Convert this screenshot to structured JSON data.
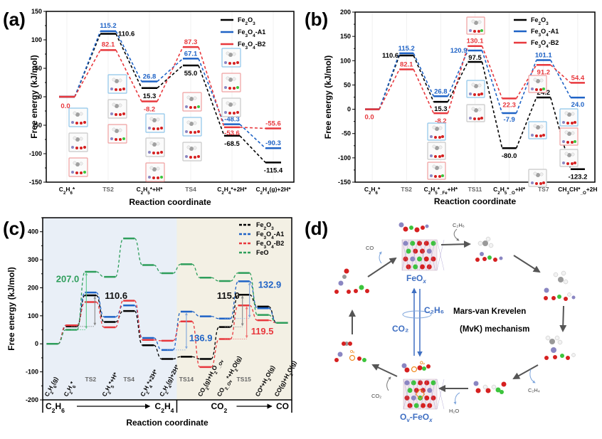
{
  "figure": {
    "panel_labels": [
      "(a)",
      "(b)",
      "(c)",
      "(d)"
    ]
  },
  "colors": {
    "Fe2O3": "#000000",
    "Fe3O4-A1": "#1f63c6",
    "Fe3O4-B2": "#e8383d",
    "FeO": "#2e9e5b",
    "mechanism_blue": "#3f6fc2",
    "arrow_gray": "#555555"
  },
  "chart_data": [
    {
      "panel": "(a)",
      "type": "line",
      "title": "",
      "xlabel": "Reaction coordinate",
      "ylabel": "Free energy (kJ/mol)",
      "ylim": [
        -150,
        150
      ],
      "yticks": [
        -150,
        -100,
        -50,
        0,
        50,
        100,
        150
      ],
      "categories": [
        "C₂H₆*",
        "TS2",
        "C₂H₅*+H*",
        "TS4",
        "C₂H₄*+2H*",
        "C₂H₄(g)+2H*"
      ],
      "ts_categories": [
        "TS2",
        "TS4"
      ],
      "legend": [
        "Fe₂O₃",
        "Fe₃O₄-A1",
        "Fe₃O₄-B2"
      ],
      "legend_position": "top-right",
      "series": [
        {
          "name": "Fe₂O₃",
          "key": "Fe2O3",
          "values": [
            0.0,
            110.6,
            15.3,
            55.0,
            -68.5,
            -115.4
          ],
          "labels": [
            "",
            "110.6",
            "15.3",
            "55.0",
            "-68.5",
            "-115.4"
          ]
        },
        {
          "name": "Fe₃O₄-A1",
          "key": "Fe3O4-A1",
          "values": [
            0.0,
            115.2,
            26.8,
            67.1,
            -48.3,
            -90.3
          ],
          "labels": [
            "",
            "115.2",
            "26.8",
            "67.1",
            "-48.3",
            "-90.3"
          ]
        },
        {
          "name": "Fe₃O₄-B2",
          "key": "Fe3O4-B2",
          "values": [
            0.0,
            82.1,
            -8.2,
            87.3,
            -53.6,
            -55.6
          ],
          "labels": [
            "0.0",
            "82.1",
            "-8.2",
            "87.3",
            "-53.6",
            "-55.6"
          ]
        }
      ]
    },
    {
      "panel": "(b)",
      "type": "line",
      "title": "",
      "xlabel": "Reaction coordinate",
      "ylabel": "Free energy (kJ/mol)",
      "ylim": [
        -150,
        200
      ],
      "yticks": [
        -150,
        -100,
        -50,
        0,
        50,
        100,
        150,
        200
      ],
      "categories": [
        "C₂H₆*",
        "TS2",
        "C₂H₅*_Fe+H*",
        "TS11",
        "C₂H₅*_O+H*",
        "TS7",
        "CH₃CH*_O+2H"
      ],
      "ts_categories": [
        "TS2",
        "TS11",
        "TS7"
      ],
      "legend": [
        "Fe₂O₃",
        "Fe₃O₄-A1",
        "Fe₃O₄-B2"
      ],
      "legend_position": "top-right",
      "series": [
        {
          "name": "Fe₂O₃",
          "key": "Fe2O3",
          "values": [
            0.0,
            110.6,
            15.3,
            97.5,
            -80.0,
            24.2,
            -123.2
          ],
          "labels": [
            "",
            "110.6",
            "15.3",
            "97.5",
            "-80.0",
            "24.2",
            "-123.2"
          ]
        },
        {
          "name": "Fe₃O₄-A1",
          "key": "Fe3O4-A1",
          "values": [
            0.0,
            115.2,
            26.8,
            120.9,
            -7.9,
            101.1,
            24.0
          ],
          "labels": [
            "",
            "115.2",
            "26.8",
            "120.9",
            "-7.9",
            "101.1",
            "24.0"
          ]
        },
        {
          "name": "Fe₃O₄-B2",
          "key": "Fe3O4-B2",
          "values": [
            0.0,
            82.1,
            -8.2,
            130.1,
            22.3,
            91.2,
            54.4
          ],
          "labels": [
            "0.0",
            "82.1",
            "-8.2",
            "130.1",
            "22.3",
            "91.2",
            "54.4"
          ]
        }
      ]
    },
    {
      "panel": "(c)",
      "type": "line",
      "title": "",
      "xlabel": "Reaction coordinate",
      "ylabel": "Free energy (kJ/mol)",
      "ylim": [
        -200,
        450
      ],
      "yticks": [
        -200,
        -100,
        0,
        100,
        200,
        300,
        400
      ],
      "categories": [
        "C₂H₆(g)",
        "C₂H₆*",
        "TS2",
        "C₂H₅*+H*",
        "TS4",
        "C₂H₄*+2H*",
        "C₂H₄(g)+2H*",
        "TS14",
        "CO₂(g)+H₂O_Ov",
        "CO₂_Ov*+H₂O(g)",
        "TS15",
        "CO*+H₂O(g)",
        "CO(g)+H₂O(g)"
      ],
      "ts_categories": [
        "TS2",
        "TS4",
        "TS14",
        "TS15"
      ],
      "regions": [
        {
          "label_from": "C₂H₆",
          "label_to": "C₂H₄",
          "from_index": 0,
          "to_index": 6,
          "color": "#e9eff7"
        },
        {
          "label_from": "CO₂",
          "label_to": "CO",
          "from_index": 7,
          "to_index": 12,
          "color": "#f3f0e4"
        }
      ],
      "legend": [
        "Fe₂O₃",
        "Fe₃O₄-A1",
        "Fe₃O₄-B2",
        "FeO"
      ],
      "legend_position": "top-right",
      "series": [
        {
          "name": "Fe₂O₃",
          "key": "Fe2O3",
          "values": [
            0,
            62,
            173,
            78,
            117,
            -5,
            -54,
            -46,
            -54,
            60,
            175,
            133,
            75
          ]
        },
        {
          "name": "Fe₃O₄-A1",
          "key": "Fe3O4-A1",
          "values": [
            0,
            66,
            183,
            96,
            137,
            21,
            -22,
            115,
            98,
            90,
            223,
            127,
            75
          ]
        },
        {
          "name": "Fe₃O₄-B2",
          "key": "Fe3O4-B2",
          "values": [
            0,
            66,
            149,
            59,
            154,
            14,
            11,
            80,
            -83,
            17,
            137,
            84,
            75
          ]
        },
        {
          "name": "FeO",
          "key": "FeO",
          "values": [
            0,
            50,
            257,
            239,
            376,
            281,
            252,
            284,
            236,
            224,
            253,
            103,
            75
          ]
        }
      ],
      "annotations": [
        {
          "text": "207.0",
          "series": "FeO",
          "from_index": 1,
          "to_index": 2,
          "barrier": 207.0
        },
        {
          "text": "110.6",
          "series": "Fe2O3",
          "from_index": 1,
          "to_index": 2,
          "barrier": 110.6
        },
        {
          "text": "136.9",
          "series": "Fe3O4-A1",
          "from_index": 6,
          "to_index": 7,
          "barrier": 136.9
        },
        {
          "text": "115.0",
          "series": "Fe2O3",
          "from_index": 9,
          "to_index": 10,
          "barrier": 115.0
        },
        {
          "text": "132.9",
          "series": "Fe3O4-A1",
          "from_index": 9,
          "to_index": 10,
          "barrier": 132.9
        },
        {
          "text": "119.5",
          "series": "Fe3O4-B2",
          "from_index": 9,
          "to_index": 10,
          "barrier": 119.5
        }
      ]
    }
  ],
  "mechanism": {
    "panel": "(d)",
    "title_line1": "Mars-van Krevelen",
    "title_line2": "(MvK) mechanism",
    "top_state": "FeO",
    "top_state_sub": "x",
    "bottom_state_prefix": "O",
    "bottom_state_prefix_sub": "v",
    "bottom_state": "-FeO",
    "bottom_state_sub": "x",
    "center_left": "CO₂",
    "center_right": "C₂H₆",
    "species": {
      "c2h6_in": "C₂H₆",
      "c2h4_out": "C₂H₄",
      "h2o_out": "H₂O",
      "co2_in": "CO₂",
      "co_out": "CO",
      "ov": "Oᵥ"
    }
  }
}
